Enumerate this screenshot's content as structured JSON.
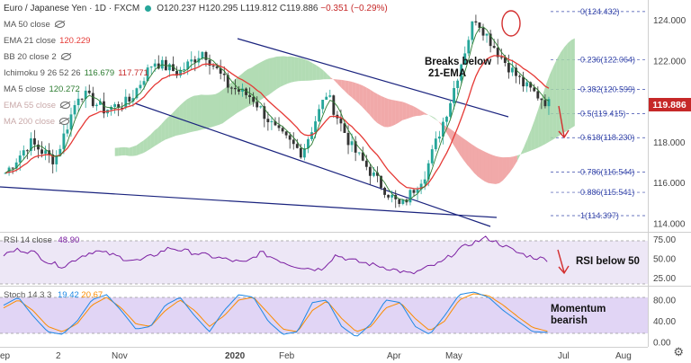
{
  "header": {
    "symbol_title": "Euro / Japanese Yen · 1D · FXCM",
    "ohlc": {
      "open": "O120.237",
      "high": "H120.295",
      "low": "L119.812",
      "close": "C119.886",
      "change": "−0.351 (−0.29%)"
    }
  },
  "indicators": [
    {
      "label": "MA 50 close",
      "value": "",
      "color": "#999999",
      "state": "hidden"
    },
    {
      "label": "EMA 21 close",
      "value": "120.229",
      "color": "#e53935",
      "state": "visible"
    },
    {
      "label": "BB 20 close 2",
      "value": "",
      "color": "#999999",
      "state": "hidden"
    },
    {
      "label": "Ichimoku 9 26 52 26",
      "value": "116.679  117.771",
      "value_a": "116.679",
      "value_b": "117.771",
      "color": "#2e7d32",
      "state": "visible"
    },
    {
      "label": "MA 5 close",
      "value": "120.272",
      "color": "#2e7d32",
      "state": "visible"
    },
    {
      "label": "EMA 55 close",
      "value": "",
      "color": "#e0b0b0",
      "state": "hidden"
    },
    {
      "label": "MA 200 close",
      "value": "",
      "color": "#e0b0b0",
      "state": "hidden"
    }
  ],
  "annotations": {
    "breaks_ema": [
      "Breaks below",
      "21-EMA"
    ],
    "rsi": "RSI below 50",
    "momentum": [
      "Momentum",
      "bearish"
    ]
  },
  "price_badge": "119.886",
  "colors": {
    "up": "#26a69a",
    "down": "#333333",
    "ema21": "#e53935",
    "ma5": "#2e7d32",
    "cloud_bull": "#a5d6a7",
    "cloud_bear": "#ef9a9a",
    "channel": "#1a237e",
    "rsi_line": "#7b1fa2",
    "stoch_k": "#1e88e5",
    "stoch_d": "#fb8c00",
    "fib": "#3949ab",
    "badge": "#c62828"
  },
  "chart_data": [
    {
      "type": "candlestick",
      "title": "Euro / Japanese Yen · 1D · FXCM",
      "x_ticks": [
        "ep",
        "2",
        "Nov",
        "2020",
        "Feb",
        "Apr",
        "May",
        "Jul",
        "Aug"
      ],
      "y_ticks": [
        "124.000",
        "122.000",
        "120.000",
        "118.000",
        "116.000",
        "114.000"
      ],
      "y_range": [
        113.6,
        125.0
      ],
      "last_close": 119.886,
      "fib_levels": [
        {
          "ratio": "0",
          "level": 124.432,
          "label": "0(124.432)"
        },
        {
          "ratio": "0.236",
          "level": 122.064,
          "label": "0.236(122.064)"
        },
        {
          "ratio": "0.382",
          "level": 120.599,
          "label": "0.382(120.599)"
        },
        {
          "ratio": "0.5",
          "level": 119.415,
          "label": "0.5(119.415)"
        },
        {
          "ratio": "0.618",
          "level": 118.23,
          "label": "0.618(118.230)"
        },
        {
          "ratio": "0.786",
          "level": 116.544,
          "label": "0.786(116.544)"
        },
        {
          "ratio": "0.886",
          "level": 115.541,
          "label": "0.886(115.541)"
        },
        {
          "ratio": "1",
          "level": 114.397,
          "label": "1(114.397)"
        }
      ],
      "close_path": [
        {
          "x": "Sep",
          "y": 116.5
        },
        {
          "x": "Oct-01",
          "y": 118.0
        },
        {
          "x": "Oct-20",
          "y": 117.1
        },
        {
          "x": "Nov",
          "y": 120.5
        },
        {
          "x": "Nov-15",
          "y": 119.6
        },
        {
          "x": "Dec",
          "y": 120.0
        },
        {
          "x": "Dec-15",
          "y": 122.0
        },
        {
          "x": "2020",
          "y": 121.4
        },
        {
          "x": "Jan-15",
          "y": 122.5
        },
        {
          "x": "Feb",
          "y": 120.8
        },
        {
          "x": "Feb-20",
          "y": 120.2
        },
        {
          "x": "Mar",
          "y": 118.5
        },
        {
          "x": "Mar-15",
          "y": 117.5
        },
        {
          "x": "Apr",
          "y": 120.4
        },
        {
          "x": "Apr-15",
          "y": 117.8
        },
        {
          "x": "May",
          "y": 116.2
        },
        {
          "x": "May-10",
          "y": 114.8
        },
        {
          "x": "May-20",
          "y": 116.5
        },
        {
          "x": "Jun-01",
          "y": 120.0
        },
        {
          "x": "Jun-05",
          "y": 124.2
        },
        {
          "x": "Jun-10",
          "y": 122.3
        },
        {
          "x": "Jun-20",
          "y": 120.8
        },
        {
          "x": "Jun-30",
          "y": 119.9
        }
      ]
    },
    {
      "type": "line",
      "title": "RSI 14 close",
      "value_label": "48.90",
      "y_ticks": [
        "75.00",
        "50.00",
        "25.00"
      ],
      "y_range": [
        15,
        80
      ],
      "bands": [
        70,
        30
      ],
      "values": [
        55,
        62,
        58,
        45,
        40,
        52,
        60,
        56,
        50,
        47,
        55,
        64,
        60,
        56,
        52,
        48,
        44,
        58,
        50,
        42,
        38,
        36,
        55,
        48,
        44,
        40,
        35,
        30,
        38,
        45,
        60,
        70,
        77,
        68,
        58,
        52,
        49
      ]
    },
    {
      "type": "line",
      "title": "Stoch 14 3 3",
      "value_k": "19.42",
      "value_d": "20.67",
      "y_ticks": [
        "80.00",
        "40.00",
        "0.00"
      ],
      "y_range": [
        -5,
        100
      ],
      "bands": [
        80,
        20
      ],
      "series": [
        {
          "values": [
            70,
            85,
            50,
            20,
            15,
            40,
            80,
            90,
            60,
            25,
            30,
            70,
            85,
            50,
            20,
            60,
            90,
            85,
            40,
            15,
            20,
            75,
            80,
            30,
            10,
            35,
            80,
            75,
            30,
            15,
            50,
            90,
            95,
            85,
            60,
            40,
            20,
            19
          ]
        },
        {
          "values": [
            65,
            80,
            60,
            30,
            20,
            35,
            70,
            85,
            65,
            35,
            30,
            60,
            80,
            60,
            30,
            50,
            80,
            85,
            55,
            25,
            20,
            60,
            78,
            45,
            20,
            30,
            65,
            75,
            45,
            22,
            40,
            80,
            92,
            88,
            70,
            48,
            28,
            21
          ]
        }
      ]
    }
  ]
}
